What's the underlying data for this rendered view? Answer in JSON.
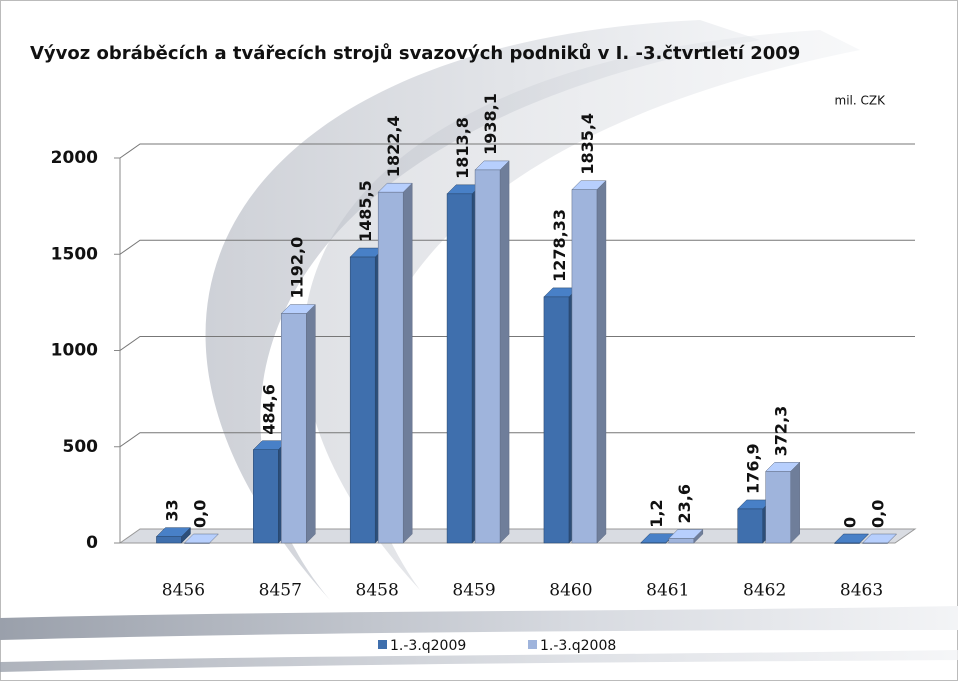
{
  "chart_data": {
    "type": "bar3d",
    "title": "Vývoz obráběcích a tvářecích strojů svazových podniků v I. -3.čtvrtletí 2009",
    "unit_label": "mil. CZK",
    "categories": [
      "8456",
      "8457",
      "8458",
      "8459",
      "8460",
      "8461",
      "8462",
      "8463"
    ],
    "series": [
      {
        "name": "1.-3.q2009",
        "color": "#3f6fad",
        "values": [
          33,
          484.6,
          1485.5,
          1813.8,
          1278.33,
          1.2,
          176.9,
          0
        ],
        "value_labels": [
          "33",
          "484,6",
          "1485,5",
          "1813,8",
          "1278,33",
          "1,2",
          "176,9",
          "0"
        ]
      },
      {
        "name": "1.-3.q2008",
        "color": "#9fb4dc",
        "values": [
          0,
          1192.0,
          1822.4,
          1938.1,
          1835.4,
          23.6,
          372.3,
          0
        ],
        "value_labels": [
          "0,0",
          "1192,0",
          "1822,4",
          "1938,1",
          "1835,4",
          "23,6",
          "372,3",
          "0,0"
        ]
      }
    ],
    "ylim": [
      0,
      2000
    ],
    "yticks": [
      0,
      500,
      1000,
      1500,
      2000
    ],
    "grid": true,
    "legend": "bottom"
  }
}
